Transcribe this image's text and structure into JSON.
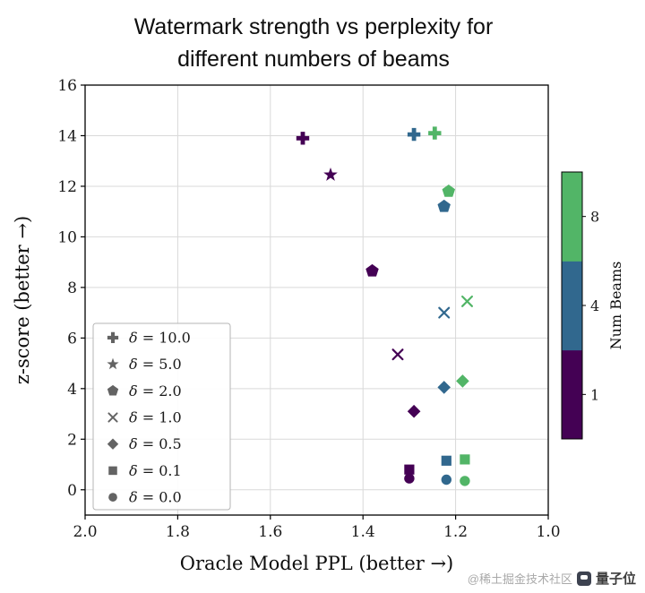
{
  "title": {
    "line1": "Watermark strength vs perplexity for",
    "line2": "different numbers of beams"
  },
  "watermark": {
    "handle": "@稀土掘金技术社区",
    "brand": "量子位"
  },
  "chart_data": {
    "type": "scatter",
    "title": "Watermark strength vs perplexity for different numbers of beams",
    "xlabel": "Oracle Model PPL (better →)",
    "ylabel": "z-score (better →)",
    "xlim": [
      2.0,
      1.0
    ],
    "ylim": [
      -1,
      16
    ],
    "x_reversed": true,
    "grid": true,
    "x_ticks": [
      2.0,
      1.8,
      1.6,
      1.4,
      1.2,
      1.0
    ],
    "y_ticks": [
      0,
      2,
      4,
      6,
      8,
      10,
      12,
      14,
      16
    ],
    "colorbar": {
      "label": "Num Beams",
      "ticks": [
        {
          "value": "1",
          "color": "#440154"
        },
        {
          "value": "4",
          "color": "#31688e"
        },
        {
          "value": "8",
          "color": "#52b567"
        }
      ]
    },
    "legend": [
      {
        "marker": "plus",
        "label": "δ = 10.0"
      },
      {
        "marker": "star",
        "label": "δ = 5.0"
      },
      {
        "marker": "pentagon",
        "label": "δ = 2.0"
      },
      {
        "marker": "x",
        "label": "δ = 1.0"
      },
      {
        "marker": "diamond",
        "label": "δ = 0.5"
      },
      {
        "marker": "square",
        "label": "δ = 0.1"
      },
      {
        "marker": "circle",
        "label": "δ = 0.0"
      }
    ],
    "marker_by_delta": {
      "10": "plus",
      "5": "star",
      "2": "pentagon",
      "1": "x",
      "0.5": "diamond",
      "0.1": "square",
      "0": "circle"
    },
    "points": [
      {
        "delta": 10.0,
        "beams": 1,
        "ppl": 1.53,
        "z": 13.9
      },
      {
        "delta": 10.0,
        "beams": 4,
        "ppl": 1.29,
        "z": 14.05
      },
      {
        "delta": 10.0,
        "beams": 8,
        "ppl": 1.245,
        "z": 14.1
      },
      {
        "delta": 5.0,
        "beams": 1,
        "ppl": 1.47,
        "z": 12.45
      },
      {
        "delta": 2.0,
        "beams": 1,
        "ppl": 1.38,
        "z": 8.65
      },
      {
        "delta": 2.0,
        "beams": 4,
        "ppl": 1.225,
        "z": 11.2
      },
      {
        "delta": 2.0,
        "beams": 8,
        "ppl": 1.215,
        "z": 11.8
      },
      {
        "delta": 1.0,
        "beams": 1,
        "ppl": 1.325,
        "z": 5.35
      },
      {
        "delta": 1.0,
        "beams": 4,
        "ppl": 1.225,
        "z": 7.0
      },
      {
        "delta": 1.0,
        "beams": 8,
        "ppl": 1.175,
        "z": 7.45
      },
      {
        "delta": 0.5,
        "beams": 1,
        "ppl": 1.29,
        "z": 3.1
      },
      {
        "delta": 0.5,
        "beams": 4,
        "ppl": 1.225,
        "z": 4.05
      },
      {
        "delta": 0.5,
        "beams": 8,
        "ppl": 1.185,
        "z": 4.3
      },
      {
        "delta": 0.1,
        "beams": 1,
        "ppl": 1.3,
        "z": 0.8
      },
      {
        "delta": 0.1,
        "beams": 4,
        "ppl": 1.22,
        "z": 1.15
      },
      {
        "delta": 0.1,
        "beams": 8,
        "ppl": 1.18,
        "z": 1.2
      },
      {
        "delta": 0.0,
        "beams": 1,
        "ppl": 1.3,
        "z": 0.45
      },
      {
        "delta": 0.0,
        "beams": 4,
        "ppl": 1.22,
        "z": 0.4
      },
      {
        "delta": 0.0,
        "beams": 8,
        "ppl": 1.18,
        "z": 0.35
      }
    ]
  }
}
